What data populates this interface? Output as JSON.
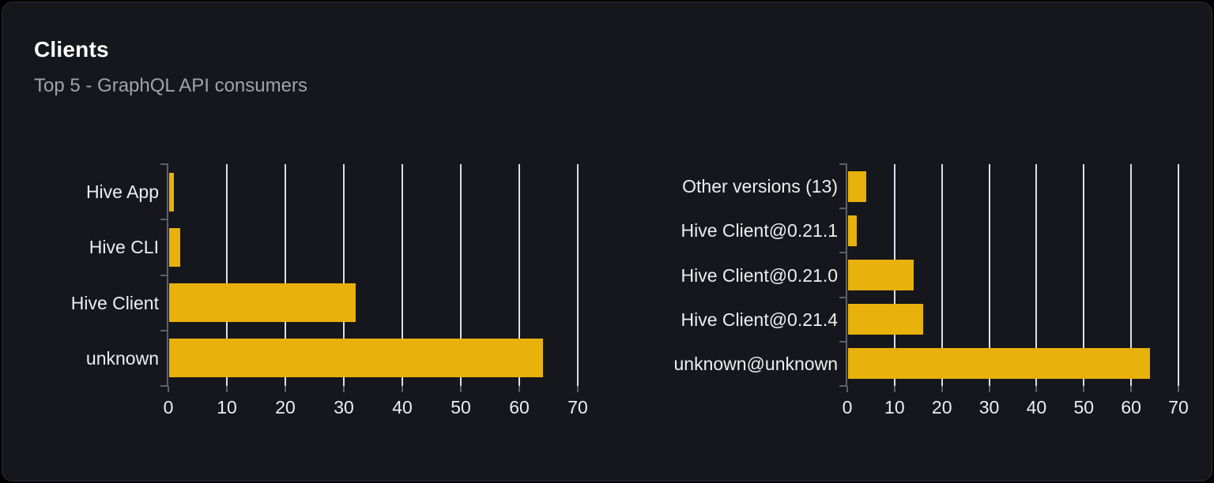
{
  "card": {
    "title": "Clients",
    "subtitle": "Top 5 - GraphQL API consumers"
  },
  "colors": {
    "bar": "#e8b10b",
    "grid_line": "#d9dfe8",
    "axis_line": "#5c6068",
    "tick_label": "#edeef0",
    "category_label": "#edeef0",
    "title": "#ffffff",
    "subtitle": "#a0a3a9",
    "card_background": "#16171c",
    "card_border": "#2b2d35",
    "page_background": "#000000"
  },
  "chart_data": [
    {
      "type": "bar",
      "orientation": "horizontal",
      "name": "clients-by-name",
      "title": "",
      "categories": [
        "Hive App",
        "Hive CLI",
        "Hive Client",
        "unknown"
      ],
      "values": [
        1,
        2,
        32,
        64
      ],
      "xlim": [
        0,
        70
      ],
      "xticks": [
        0,
        10,
        20,
        30,
        40,
        50,
        60,
        70
      ],
      "xlabel": "",
      "ylabel": "",
      "grid": true,
      "legend": false
    },
    {
      "type": "bar",
      "orientation": "horizontal",
      "name": "clients-by-version",
      "title": "",
      "categories": [
        "Other versions (13)",
        "Hive Client@0.21.1",
        "Hive Client@0.21.0",
        "Hive Client@0.21.4",
        "unknown@unknown"
      ],
      "values": [
        4,
        2,
        14,
        16,
        64
      ],
      "xlim": [
        0,
        70
      ],
      "xticks": [
        0,
        10,
        20,
        30,
        40,
        50,
        60,
        70
      ],
      "xlabel": "",
      "ylabel": "",
      "grid": true,
      "legend": false
    }
  ]
}
